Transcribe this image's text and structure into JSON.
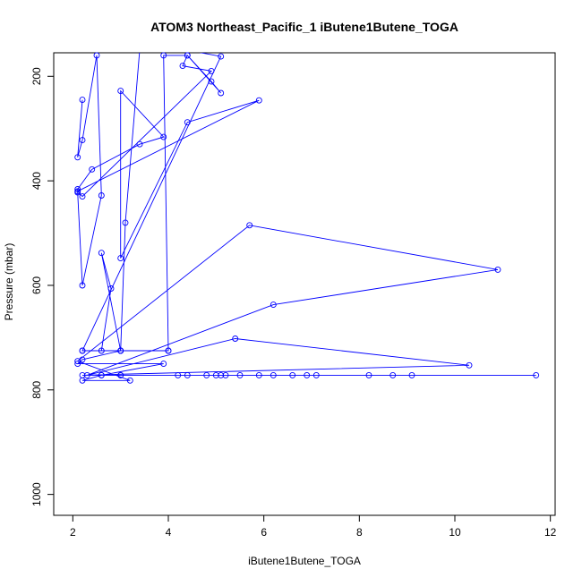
{
  "chart_data": {
    "type": "line",
    "title": "ATOM3 Northeast_Pacific_1 iButene1Butene_TOGA",
    "xlabel": "iButene1Butene_TOGA",
    "ylabel": "Pressure (mbar)",
    "xlim": [
      1.6,
      12.1
    ],
    "ylim": [
      1040,
      155
    ],
    "y_reversed": true,
    "x_ticks": [
      2,
      4,
      6,
      8,
      10,
      12
    ],
    "y_ticks": [
      200,
      400,
      600,
      800,
      1000
    ],
    "grid": false,
    "legend": "none",
    "colors": {
      "series": "#0000ff"
    },
    "series": [
      {
        "x": [
          2.2,
          2.1,
          2.2,
          2.5,
          2.6,
          2.2,
          2.1,
          2.1,
          2.4,
          3.4,
          3.9,
          3.0,
          3.0,
          4.4,
          5.9,
          2.1,
          2.2,
          4.9,
          4.3,
          4.4,
          4.9,
          5.1,
          4.4,
          3.9,
          4.0,
          3.0,
          3.1,
          3.4,
          4.4,
          5.1,
          2.2,
          3.0,
          2.6,
          2.8,
          2.6,
          2.2,
          4.0,
          3.0,
          2.2,
          2.1,
          3.9,
          2.6,
          2.2,
          3.2,
          2.1,
          5.7,
          10.9,
          6.2,
          2.3,
          5.4,
          10.3,
          2.2,
          3.0,
          2.6,
          4.2,
          4.8,
          5.0,
          5.1,
          5.2,
          5.5,
          5.9,
          6.2,
          6.6,
          6.9,
          7.1,
          8.2,
          8.7,
          9.1,
          11.7,
          4.4,
          3.0
        ],
        "y": [
          245,
          355,
          322,
          160,
          428,
          600,
          422,
          416,
          378,
          330,
          316,
          228,
          548,
          288,
          246,
          420,
          430,
          190,
          180,
          160,
          210,
          232,
          160,
          160,
          725,
          725,
          480,
          150,
          150,
          162,
          725,
          725,
          538,
          606,
          725,
          725,
          725,
          725,
          742,
          750,
          750,
          772,
          782,
          782,
          745,
          485,
          570,
          637,
          772,
          702,
          753,
          772,
          772,
          772,
          772,
          772,
          772,
          772,
          772,
          772,
          772,
          772,
          772,
          772,
          772,
          772,
          772,
          772,
          772,
          772,
          772
        ]
      }
    ]
  }
}
